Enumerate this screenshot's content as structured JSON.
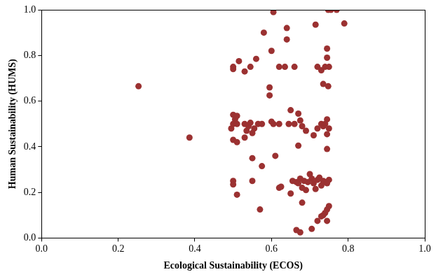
{
  "chart_data": {
    "type": "scatter",
    "x_label": "Ecological Sustainability (ECOS)",
    "y_label": "Human Sustainability (HUMS)",
    "color": "#9b3131",
    "marker": "circle",
    "grid": false,
    "xlim": [
      0,
      1
    ],
    "ylim": [
      0,
      1
    ],
    "xticks": [
      {
        "value": 0,
        "label": "0.0"
      },
      {
        "value": 0.2,
        "label": "0.2"
      },
      {
        "value": 0.4,
        "label": "0.4"
      },
      {
        "value": 0.6,
        "label": "0.6"
      },
      {
        "value": 0.8,
        "label": "0.8"
      },
      {
        "value": 1,
        "label": "1.0"
      }
    ],
    "yticks": [
      {
        "value": 0,
        "label": "0.0"
      },
      {
        "value": 0.2,
        "label": "0.2"
      },
      {
        "value": 0.4,
        "label": "0.4"
      },
      {
        "value": 0.6,
        "label": "0.6"
      },
      {
        "value": 0.8,
        "label": "0.8"
      },
      {
        "value": 1,
        "label": "1.0"
      }
    ],
    "x": [
      0.253,
      0.386,
      0.605,
      0.748,
      0.755,
      0.77,
      0.79,
      0.715,
      0.58,
      0.64,
      0.64,
      0.6,
      0.745,
      0.745,
      0.56,
      0.515,
      0.5,
      0.5,
      0.545,
      0.53,
      0.62,
      0.635,
      0.66,
      0.72,
      0.73,
      0.74,
      0.75,
      0.735,
      0.748,
      0.495,
      0.5,
      0.5,
      0.505,
      0.51,
      0.51,
      0.53,
      0.535,
      0.54,
      0.545,
      0.55,
      0.555,
      0.565,
      0.575,
      0.595,
      0.595,
      0.6,
      0.605,
      0.62,
      0.65,
      0.66,
      0.67,
      0.675,
      0.68,
      0.69,
      0.71,
      0.72,
      0.73,
      0.735,
      0.74,
      0.745,
      0.75,
      0.745,
      0.745,
      0.55,
      0.5,
      0.51,
      0.53,
      0.61,
      0.575,
      0.67,
      0.645,
      0.5,
      0.5,
      0.51,
      0.55,
      0.57,
      0.62,
      0.625,
      0.65,
      0.655,
      0.665,
      0.67,
      0.675,
      0.68,
      0.685,
      0.69,
      0.695,
      0.7,
      0.705,
      0.71,
      0.715,
      0.72,
      0.725,
      0.73,
      0.735,
      0.74,
      0.745,
      0.75,
      0.68,
      0.665,
      0.675,
      0.705,
      0.72,
      0.735,
      0.74,
      0.745,
      0.75,
      0.745,
      0.73
    ],
    "values": [
      0.665,
      0.44,
      0.99,
      1.0,
      1.0,
      1.0,
      0.94,
      0.935,
      0.9,
      0.92,
      0.87,
      0.82,
      0.83,
      0.79,
      0.785,
      0.775,
      0.75,
      0.74,
      0.75,
      0.73,
      0.75,
      0.75,
      0.75,
      0.75,
      0.735,
      0.75,
      0.75,
      0.675,
      0.665,
      0.48,
      0.5,
      0.54,
      0.52,
      0.535,
      0.5,
      0.5,
      0.47,
      0.49,
      0.505,
      0.46,
      0.48,
      0.5,
      0.5,
      0.66,
      0.625,
      0.51,
      0.5,
      0.5,
      0.56,
      0.5,
      0.545,
      0.515,
      0.49,
      0.47,
      0.45,
      0.48,
      0.5,
      0.49,
      0.5,
      0.52,
      0.48,
      0.455,
      0.39,
      0.35,
      0.43,
      0.42,
      0.44,
      0.36,
      0.315,
      0.405,
      0.5,
      0.25,
      0.235,
      0.19,
      0.25,
      0.125,
      0.22,
      0.225,
      0.195,
      0.25,
      0.245,
      0.24,
      0.26,
      0.22,
      0.25,
      0.21,
      0.245,
      0.28,
      0.26,
      0.24,
      0.215,
      0.255,
      0.265,
      0.23,
      0.25,
      0.245,
      0.24,
      0.255,
      0.155,
      0.035,
      0.025,
      0.04,
      0.075,
      0.1,
      0.11,
      0.125,
      0.14,
      0.075,
      0.095
    ]
  }
}
